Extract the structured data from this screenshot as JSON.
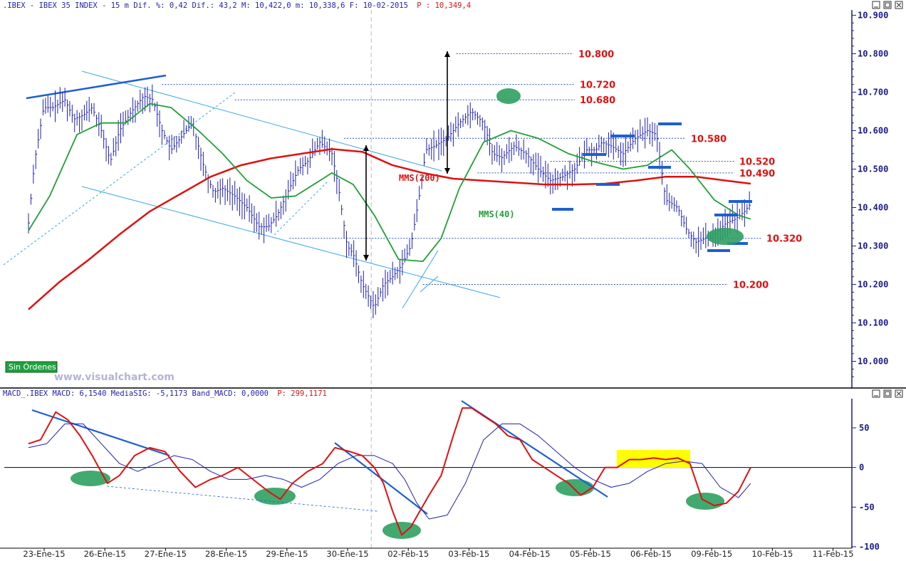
{
  "price_header": {
    "prefix": ".IBEX - IBEX 35 INDEX -  15 m Dif. %: 0,42 Dif.: 43,2 M: 10,422,0 m: 10,338,6 F: 10-02-2015",
    "last": "P : 10,349,4"
  },
  "macd_header": {
    "prefix": "MACD_.IBEX MACD: 6,1540 MediaSIG: -5,1173 Band_MACD: 0,0000",
    "last": "P: 299,1171"
  },
  "badge": "Sin Órdenes",
  "watermark": "www.visualchart.com",
  "colors": {
    "price": "#1f1fb4",
    "sma200": "#e01010",
    "sma40": "#1fa035",
    "trend": "#1e5fd0",
    "channel": "#3aa8e8",
    "level": "#2a4fc8",
    "axis": "#1a1a8c",
    "ellipse": "#2ea060",
    "highlight": "#ffff00",
    "macd": "#e01010",
    "signal": "#1f1fb4"
  },
  "chart_data": [
    {
      "type": "line",
      "pane": "price",
      "title": ".IBEX - IBEX 35 INDEX - 15 m",
      "x_tick_labels": [
        "23-Ene-15",
        "26-Ene-15",
        "27-Ene-15",
        "28-Ene-15",
        "29-Ene-15",
        "30-Ene-15",
        "02-Feb-15",
        "03-Feb-15",
        "04-Feb-15",
        "05-Feb-15",
        "06-Feb-15",
        "09-Feb-15",
        "10-Feb-15",
        "11-Feb-15"
      ],
      "y_ticks": [
        "10.900",
        "10.800",
        "10.700",
        "10.600",
        "10.500",
        "10.400",
        "10.300",
        "10.200",
        "10.100",
        "10.000"
      ],
      "ylim": [
        9.94,
        10.91
      ],
      "x_unit": "trading day index (0 = 23-Ene-15)",
      "series": [
        {
          "name": "MMS(200)",
          "x": [
            0,
            0.5,
            1,
            1.5,
            2,
            2.5,
            3,
            3.5,
            4,
            4.5,
            5,
            5.5,
            6,
            6.5,
            7,
            7.5,
            8,
            8.5,
            9,
            9.5,
            10,
            10.5,
            11,
            11.5,
            11.9
          ],
          "values": [
            10.135,
            10.205,
            10.265,
            10.33,
            10.39,
            10.435,
            10.48,
            10.51,
            10.528,
            10.54,
            10.552,
            10.545,
            10.51,
            10.49,
            10.475,
            10.47,
            10.465,
            10.46,
            10.46,
            10.462,
            10.47,
            10.48,
            10.48,
            10.47,
            10.462
          ]
        },
        {
          "name": "MMS(40)",
          "x": [
            0,
            0.35,
            0.8,
            1.2,
            1.6,
            2,
            2.35,
            2.8,
            3.2,
            3.6,
            4,
            4.4,
            4.8,
            5,
            5.35,
            5.7,
            6.1,
            6.5,
            6.8,
            7.1,
            7.5,
            7.95,
            8.4,
            8.9,
            9.3,
            9.8,
            10.2,
            10.6,
            10.9,
            11.3,
            11.7,
            11.9
          ],
          "values": [
            10.34,
            10.43,
            10.59,
            10.62,
            10.62,
            10.67,
            10.66,
            10.6,
            10.54,
            10.47,
            10.425,
            10.43,
            10.47,
            10.49,
            10.46,
            10.38,
            10.265,
            10.26,
            10.32,
            10.45,
            10.57,
            10.6,
            10.58,
            10.54,
            10.52,
            10.5,
            10.51,
            10.55,
            10.5,
            10.42,
            10.38,
            10.37
          ]
        }
      ],
      "ohlc_close_path": {
        "x": [
          0,
          0.1,
          0.25,
          0.4,
          0.6,
          0.75,
          0.9,
          1.05,
          1.2,
          1.35,
          1.5,
          1.7,
          1.9,
          2.05,
          2.2,
          2.35,
          2.5,
          2.7,
          2.9,
          3.05,
          3.2,
          3.4,
          3.6,
          3.8,
          3.95,
          4.1,
          4.3,
          4.45,
          4.6,
          4.8,
          5,
          5.1,
          5.25,
          5.35,
          5.5,
          5.7,
          5.85,
          6,
          6.15,
          6.3,
          6.45,
          6.55,
          6.7,
          6.9,
          7.1,
          7.3,
          7.5,
          7.65,
          7.8,
          8,
          8.2,
          8.4,
          8.6,
          8.8,
          9,
          9.2,
          9.35,
          9.45,
          9.6,
          9.8,
          10,
          10.2,
          10.35,
          10.5,
          10.7,
          10.85,
          11,
          11.15,
          11.3,
          11.5,
          11.65,
          11.8,
          11.9
        ],
        "values": [
          10.36,
          10.52,
          10.66,
          10.66,
          10.68,
          10.63,
          10.64,
          10.66,
          10.6,
          10.52,
          10.6,
          10.65,
          10.69,
          10.68,
          10.6,
          10.55,
          10.58,
          10.62,
          10.5,
          10.44,
          10.45,
          10.43,
          10.4,
          10.35,
          10.35,
          10.38,
          10.45,
          10.5,
          10.52,
          10.57,
          10.54,
          10.46,
          10.3,
          10.28,
          10.2,
          10.14,
          10.2,
          10.22,
          10.25,
          10.3,
          10.44,
          10.55,
          10.56,
          10.58,
          10.62,
          10.65,
          10.62,
          10.54,
          10.53,
          10.56,
          10.54,
          10.5,
          10.47,
          10.48,
          10.5,
          10.55,
          10.55,
          10.57,
          10.56,
          10.54,
          10.58,
          10.6,
          10.59,
          10.42,
          10.4,
          10.34,
          10.31,
          10.32,
          10.33,
          10.36,
          10.37,
          10.39,
          10.41
        ]
      },
      "levels": [
        "10.800",
        "10.720",
        "10.680",
        "10.580",
        "10.520",
        "10.490",
        "10.320",
        "10.200"
      ],
      "level_values": [
        10.8,
        10.72,
        10.68,
        10.58,
        10.52,
        10.49,
        10.32,
        10.2
      ],
      "annotations": [
        "MMS(200)",
        "MMS(40)"
      ]
    },
    {
      "type": "line",
      "pane": "macd",
      "title": "MACD_.IBEX MACD",
      "y_ticks": [
        "50",
        "0",
        "-50",
        "-100"
      ],
      "ylim": [
        -100,
        85
      ],
      "series": [
        {
          "name": "MACD",
          "x": [
            0,
            0.2,
            0.45,
            0.65,
            0.85,
            1.05,
            1.3,
            1.5,
            1.75,
            2,
            2.25,
            2.5,
            2.75,
            3,
            3.2,
            3.45,
            3.7,
            3.95,
            4.15,
            4.35,
            4.6,
            4.85,
            5.05,
            5.3,
            5.5,
            5.7,
            5.85,
            6,
            6.15,
            6.3,
            6.45,
            6.6,
            6.8,
            7,
            7.15,
            7.3,
            7.5,
            7.7,
            7.9,
            8.1,
            8.3,
            8.5,
            8.7,
            8.9,
            9.1,
            9.3,
            9.5,
            9.7,
            9.9,
            10.1,
            10.3,
            10.5,
            10.7,
            10.9,
            11.1,
            11.3,
            11.5,
            11.7,
            11.9
          ],
          "values": [
            30,
            35,
            70,
            60,
            40,
            15,
            -20,
            -10,
            15,
            25,
            20,
            -5,
            -25,
            -15,
            -10,
            0,
            -15,
            -30,
            -40,
            -20,
            -5,
            5,
            25,
            20,
            15,
            0,
            -20,
            -55,
            -85,
            -75,
            -55,
            -35,
            -10,
            40,
            75,
            75,
            65,
            55,
            40,
            35,
            10,
            0,
            -10,
            -20,
            -35,
            -25,
            0,
            0,
            10,
            10,
            12,
            10,
            12,
            5,
            -40,
            -48,
            -45,
            -30,
            0
          ]
        },
        {
          "name": "Signal",
          "x": [
            0,
            0.3,
            0.6,
            0.9,
            1.2,
            1.5,
            1.8,
            2.1,
            2.4,
            2.7,
            3,
            3.3,
            3.6,
            3.9,
            4.2,
            4.5,
            4.8,
            5.1,
            5.4,
            5.7,
            6,
            6.2,
            6.4,
            6.6,
            6.9,
            7.2,
            7.5,
            7.8,
            8.1,
            8.4,
            8.7,
            9,
            9.3,
            9.6,
            9.9,
            10.2,
            10.5,
            10.8,
            11.1,
            11.4,
            11.7,
            11.9
          ],
          "values": [
            25,
            30,
            55,
            55,
            30,
            5,
            -5,
            5,
            15,
            10,
            -5,
            -15,
            -15,
            -10,
            -15,
            -25,
            -15,
            5,
            15,
            15,
            5,
            -15,
            -45,
            -65,
            -60,
            -20,
            35,
            55,
            55,
            40,
            20,
            0,
            -15,
            -25,
            -20,
            -5,
            5,
            8,
            5,
            -25,
            -38,
            -20
          ]
        }
      ]
    }
  ]
}
